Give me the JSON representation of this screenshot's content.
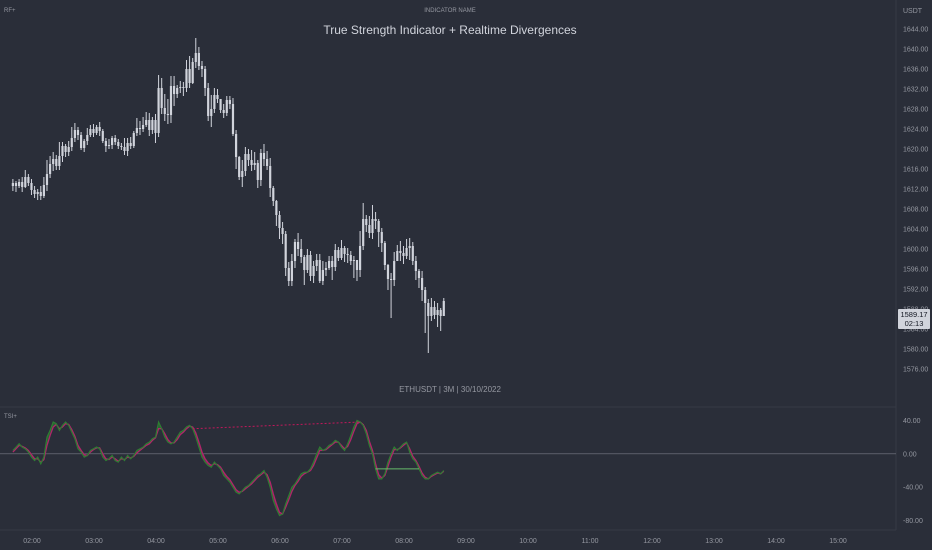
{
  "top_left_label": "RF+",
  "indicator_name": "INDICATOR NAME",
  "title": "True Strength Indicator + Realtime Divergences",
  "subtitle": "ETHUSDT | 3M | 30/10/2022",
  "currency": "USDT",
  "price_tag": {
    "value": "1589.17",
    "countdown": "02:13"
  },
  "tsi_label": "TSI+",
  "colors": {
    "background": "#2a2e39",
    "candle": "#d1d4dc",
    "tsi_fast": "#2e7d32",
    "tsi_slow": "#b1256b",
    "divergence_bear": "#c2185b",
    "divergence_bull": "#66bb6a",
    "zero_line": "#787b86"
  },
  "chart_data": [
    {
      "type": "candlestick",
      "name": "ETHUSDT",
      "y_ticks": [
        "1644.00",
        "1640.00",
        "1636.00",
        "1632.00",
        "1628.00",
        "1624.00",
        "1620.00",
        "1616.00",
        "1612.00",
        "1608.00",
        "1604.00",
        "1600.00",
        "1596.00",
        "1592.00",
        "1588.00",
        "1584.00",
        "1580.00",
        "1576.00"
      ],
      "ylim": [
        1572,
        1647
      ],
      "x_ticks": [
        "02:00",
        "03:00",
        "04:00",
        "05:00",
        "06:00",
        "07:00",
        "08:00",
        "09:00",
        "10:00",
        "11:00",
        "12:00",
        "13:00",
        "14:00",
        "15:00"
      ],
      "x_start": "01:40",
      "interval_minutes": 3,
      "close": [
        1613.2,
        1612.6,
        1613.4,
        1612.4,
        1614.4,
        1613.2,
        1611.8,
        1611.0,
        1611.4,
        1610.6,
        1612.8,
        1615.0,
        1617.0,
        1618.0,
        1616.6,
        1618.6,
        1620.6,
        1619.4,
        1620.4,
        1622.2,
        1623.8,
        1622.8,
        1620.2,
        1621.6,
        1622.8,
        1624.0,
        1623.2,
        1624.4,
        1623.6,
        1621.6,
        1620.6,
        1620.8,
        1622.2,
        1621.4,
        1620.6,
        1620.4,
        1619.6,
        1621.2,
        1620.6,
        1623.2,
        1624.2,
        1624.0,
        1624.8,
        1625.8,
        1623.8,
        1625.8,
        1623.2,
        1632.2,
        1628.2,
        1627.0,
        1626.8,
        1632.6,
        1631.0,
        1632.2,
        1632.4,
        1632.2,
        1636.0,
        1633.2,
        1637.4,
        1639.2,
        1636.6,
        1636.0,
        1632.2,
        1626.6,
        1628.0,
        1630.8,
        1630.0,
        1627.8,
        1627.2,
        1629.8,
        1629.0,
        1623.0,
        1618.4,
        1614.4,
        1615.6,
        1619.0,
        1617.8,
        1616.8,
        1617.2,
        1613.8,
        1619.2,
        1618.0,
        1616.6,
        1612.2,
        1609.6,
        1606.8,
        1604.2,
        1603.0,
        1596.2,
        1593.6,
        1597.6,
        1601.4,
        1600.0,
        1598.4,
        1595.8,
        1598.8,
        1594.6,
        1596.6,
        1597.8,
        1593.6,
        1595.8,
        1596.2,
        1597.6,
        1596.4,
        1599.8,
        1598.2,
        1600.2,
        1599.0,
        1598.8,
        1597.6,
        1597.8,
        1595.8,
        1600.6,
        1606.0,
        1604.8,
        1603.2,
        1606.0,
        1605.6,
        1603.4,
        1601.2,
        1596.8,
        1594.0,
        1593.8,
        1597.6,
        1599.6,
        1599.2,
        1598.6,
        1600.2,
        1600.6,
        1597.6,
        1595.6,
        1594.2,
        1591.8,
        1589.2,
        1586.6,
        1588.4,
        1586.8,
        1587.8,
        1586.6,
        1589.6
      ],
      "high": [
        1614.0,
        1613.6,
        1614.0,
        1614.4,
        1615.8,
        1615.0,
        1614.0,
        1612.6,
        1612.0,
        1612.6,
        1614.4,
        1617.8,
        1618.6,
        1619.4,
        1618.8,
        1621.4,
        1621.4,
        1621.0,
        1621.6,
        1624.4,
        1625.2,
        1624.4,
        1623.4,
        1622.0,
        1624.2,
        1624.8,
        1625.0,
        1624.8,
        1625.4,
        1624.0,
        1622.2,
        1622.0,
        1622.6,
        1622.8,
        1622.0,
        1621.2,
        1622.2,
        1622.2,
        1622.4,
        1623.6,
        1626.2,
        1625.6,
        1626.4,
        1627.4,
        1627.2,
        1626.4,
        1627.0,
        1634.8,
        1634.2,
        1631.0,
        1630.0,
        1634.6,
        1634.6,
        1632.8,
        1633.6,
        1633.4,
        1637.8,
        1638.6,
        1638.2,
        1642.2,
        1640.4,
        1637.6,
        1636.6,
        1633.2,
        1630.8,
        1632.2,
        1632.0,
        1629.8,
        1629.0,
        1630.6,
        1630.6,
        1630.2,
        1623.8,
        1618.6,
        1617.8,
        1620.4,
        1620.0,
        1619.8,
        1619.4,
        1617.8,
        1620.0,
        1621.0,
        1619.6,
        1618.2,
        1612.6,
        1609.8,
        1607.6,
        1605.4,
        1603.6,
        1597.4,
        1599.0,
        1602.0,
        1603.2,
        1602.0,
        1598.8,
        1600.0,
        1599.6,
        1597.6,
        1599.0,
        1599.0,
        1597.6,
        1597.4,
        1598.6,
        1598.6,
        1601.0,
        1600.4,
        1601.8,
        1600.6,
        1600.2,
        1599.6,
        1598.6,
        1597.8,
        1603.6,
        1609.2,
        1606.8,
        1606.6,
        1608.8,
        1607.4,
        1606.0,
        1604.2,
        1601.6,
        1597.0,
        1595.2,
        1599.4,
        1600.8,
        1601.6,
        1600.6,
        1602.0,
        1602.2,
        1601.4,
        1598.6,
        1596.0,
        1595.6,
        1592.4,
        1590.0,
        1590.2,
        1589.6,
        1589.2,
        1588.2,
        1590.2
      ],
      "low": [
        1611.6,
        1611.4,
        1612.2,
        1611.4,
        1612.2,
        1612.6,
        1610.8,
        1610.2,
        1609.8,
        1609.8,
        1610.2,
        1611.6,
        1614.2,
        1615.6,
        1615.8,
        1615.8,
        1617.4,
        1618.4,
        1618.6,
        1619.6,
        1621.4,
        1621.8,
        1619.8,
        1619.4,
        1620.8,
        1622.4,
        1622.4,
        1622.8,
        1622.6,
        1621.2,
        1619.4,
        1620.0,
        1620.0,
        1620.8,
        1620.0,
        1619.8,
        1618.8,
        1618.6,
        1620.0,
        1620.2,
        1622.6,
        1622.8,
        1623.4,
        1624.4,
        1622.6,
        1623.0,
        1621.2,
        1622.4,
        1627.0,
        1625.6,
        1625.0,
        1625.2,
        1628.6,
        1630.2,
        1631.2,
        1630.6,
        1631.4,
        1632.2,
        1633.0,
        1636.2,
        1635.8,
        1634.4,
        1630.6,
        1625.6,
        1624.4,
        1627.2,
        1629.2,
        1627.2,
        1626.2,
        1626.6,
        1628.0,
        1622.6,
        1616.0,
        1613.8,
        1612.4,
        1614.6,
        1616.6,
        1615.6,
        1615.8,
        1612.2,
        1612.6,
        1616.6,
        1615.8,
        1610.4,
        1608.6,
        1604.6,
        1602.0,
        1601.0,
        1594.6,
        1592.6,
        1592.6,
        1596.2,
        1598.6,
        1597.2,
        1592.8,
        1595.2,
        1593.6,
        1593.2,
        1595.6,
        1593.2,
        1592.8,
        1594.6,
        1595.8,
        1593.8,
        1595.6,
        1597.6,
        1597.8,
        1597.4,
        1597.2,
        1596.8,
        1594.2,
        1593.6,
        1594.4,
        1599.8,
        1603.4,
        1602.2,
        1602.0,
        1604.0,
        1600.4,
        1599.4,
        1595.8,
        1591.8,
        1586.2,
        1592.6,
        1597.6,
        1597.6,
        1597.0,
        1598.0,
        1597.8,
        1596.8,
        1593.8,
        1592.2,
        1589.6,
        1583.2,
        1579.2,
        1585.6,
        1586.0,
        1584.4,
        1583.6,
        1586.6
      ]
    },
    {
      "type": "line",
      "name": "TSI+",
      "y_ticks": [
        "40.00",
        "0.00",
        "-40.00",
        "-80.00"
      ],
      "ylim": [
        -90,
        50
      ],
      "series": [
        {
          "role": "tsi",
          "values": [
            4,
            8,
            12,
            8,
            6,
            2,
            -4,
            -8,
            -4,
            -12,
            -4,
            20,
            28,
            38,
            36,
            28,
            34,
            38,
            34,
            26,
            18,
            6,
            2,
            -4,
            -2,
            4,
            6,
            8,
            6,
            -4,
            -8,
            -6,
            -2,
            -8,
            -10,
            -4,
            -8,
            -2,
            -6,
            -2,
            4,
            6,
            8,
            12,
            14,
            18,
            20,
            38,
            30,
            20,
            14,
            12,
            14,
            20,
            26,
            28,
            32,
            34,
            30,
            20,
            8,
            -4,
            -10,
            -14,
            -16,
            -10,
            -14,
            -18,
            -26,
            -30,
            -34,
            -40,
            -46,
            -48,
            -44,
            -40,
            -38,
            -34,
            -30,
            -26,
            -24,
            -20,
            -28,
            -40,
            -56,
            -66,
            -74,
            -72,
            -60,
            -50,
            -40,
            -36,
            -30,
            -24,
            -22,
            -22,
            -18,
            -10,
            0,
            8,
            4,
            6,
            10,
            12,
            16,
            14,
            8,
            4,
            12,
            22,
            32,
            40,
            38,
            34,
            24,
            10,
            0,
            -18,
            -30,
            -30,
            -24,
            -10,
            0,
            8,
            4,
            8,
            12,
            14,
            2,
            -6,
            -10,
            -18,
            -26,
            -30,
            -30,
            -26,
            -24,
            -22,
            -24,
            -20
          ]
        },
        {
          "role": "signal",
          "values": [
            2,
            6,
            10,
            9,
            7,
            4,
            -1,
            -6,
            -6,
            -10,
            -7,
            10,
            22,
            32,
            35,
            30,
            32,
            36,
            35,
            29,
            21,
            10,
            4,
            -1,
            -2,
            2,
            5,
            7,
            7,
            0,
            -6,
            -7,
            -4,
            -6,
            -9,
            -6,
            -7,
            -4,
            -5,
            -3,
            1,
            4,
            7,
            10,
            12,
            16,
            19,
            30,
            30,
            24,
            17,
            13,
            13,
            17,
            23,
            26,
            30,
            33,
            32,
            25,
            14,
            2,
            -6,
            -11,
            -14,
            -12,
            -13,
            -16,
            -22,
            -27,
            -31,
            -37,
            -43,
            -46,
            -45,
            -42,
            -39,
            -36,
            -32,
            -28,
            -25,
            -22,
            -25,
            -34,
            -48,
            -60,
            -70,
            -72,
            -64,
            -55,
            -45,
            -38,
            -33,
            -27,
            -24,
            -22,
            -20,
            -14,
            -5,
            4,
            4,
            5,
            8,
            11,
            14,
            14,
            10,
            6,
            9,
            17,
            27,
            36,
            38,
            35,
            28,
            15,
            4,
            -12,
            -25,
            -29,
            -26,
            -15,
            -4,
            5,
            5,
            7,
            10,
            13,
            6,
            -3,
            -8,
            -15,
            -23,
            -28,
            -30,
            -27,
            -25,
            -23,
            -24,
            -21
          ]
        }
      ],
      "divergences": [
        {
          "type": "bearish",
          "from_index": 58,
          "to_index": 112
        },
        {
          "type": "bullish",
          "from_index": 117,
          "to_index": 131
        }
      ]
    }
  ]
}
